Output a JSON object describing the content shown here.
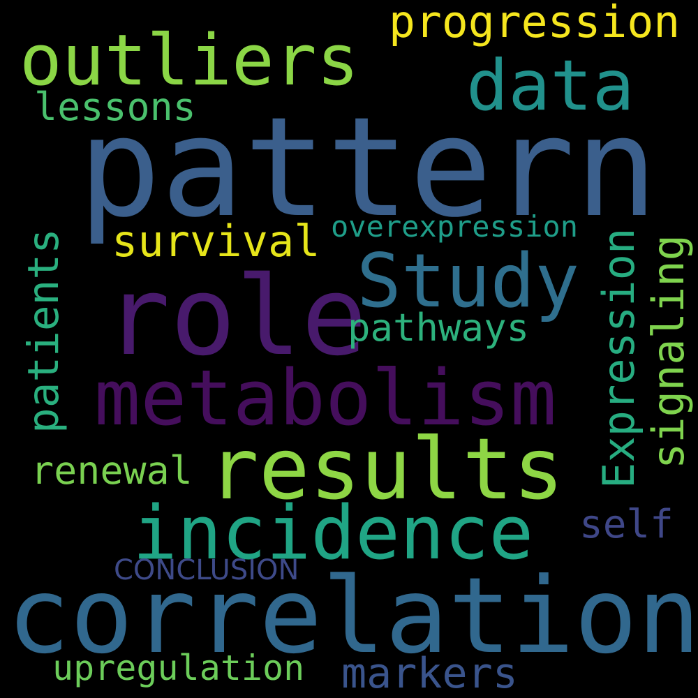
{
  "word_cloud": {
    "background": "#000000",
    "words": [
      {
        "id": "pattern",
        "text": "pattern",
        "color": "#3b5f8c",
        "orientation": "horizontal"
      },
      {
        "id": "correlation",
        "text": "correlation",
        "color": "#31688e",
        "orientation": "horizontal"
      },
      {
        "id": "role",
        "text": "role",
        "color": "#481a6c",
        "orientation": "horizontal"
      },
      {
        "id": "metabolism",
        "text": "metabolism",
        "color": "#450e5c",
        "orientation": "horizontal"
      },
      {
        "id": "results",
        "text": "results",
        "color": "#8ed645",
        "orientation": "horizontal"
      },
      {
        "id": "outliers",
        "text": "outliers",
        "color": "#8bd646",
        "orientation": "horizontal"
      },
      {
        "id": "incidence",
        "text": "incidence",
        "color": "#20a585",
        "orientation": "horizontal"
      },
      {
        "id": "study",
        "text": "Study",
        "color": "#2f6f8e",
        "orientation": "horizontal"
      },
      {
        "id": "data",
        "text": "data",
        "color": "#21918c",
        "orientation": "horizontal"
      },
      {
        "id": "progression",
        "text": "progression",
        "color": "#f5e61e",
        "orientation": "horizontal"
      },
      {
        "id": "survival",
        "text": "survival",
        "color": "#e6e51a",
        "orientation": "horizontal"
      },
      {
        "id": "pathways",
        "text": "pathways",
        "color": "#2db27d",
        "orientation": "horizontal"
      },
      {
        "id": "lessons",
        "text": "lessons",
        "color": "#4ac16d",
        "orientation": "horizontal"
      },
      {
        "id": "overexpression",
        "text": "overexpression",
        "color": "#1f9e89",
        "orientation": "horizontal"
      },
      {
        "id": "patients",
        "text": "patients",
        "color": "#2ab07f",
        "orientation": "vertical"
      },
      {
        "id": "expression",
        "text": "Expression",
        "color": "#27ad81",
        "orientation": "vertical"
      },
      {
        "id": "signaling",
        "text": "signaling",
        "color": "#7fd34e",
        "orientation": "vertical"
      },
      {
        "id": "renewal",
        "text": "renewal",
        "color": "#7ad151",
        "orientation": "horizontal"
      },
      {
        "id": "self",
        "text": "self",
        "color": "#3f4788",
        "orientation": "horizontal"
      },
      {
        "id": "conclusion",
        "text": "CONCLUSION",
        "color": "#3e4a89",
        "orientation": "horizontal"
      },
      {
        "id": "upregulation",
        "text": "upregulation",
        "color": "#6ccd5a",
        "orientation": "horizontal"
      },
      {
        "id": "markers",
        "text": "markers",
        "color": "#3a548c",
        "orientation": "horizontal"
      }
    ]
  }
}
